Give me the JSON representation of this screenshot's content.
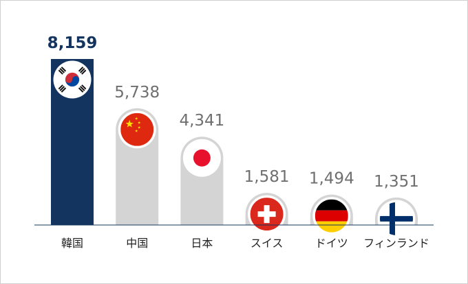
{
  "chart_data": {
    "type": "bar",
    "categories": [
      "韓国",
      "中国",
      "日本",
      "スイス",
      "ドイツ",
      "フィンランド"
    ],
    "values": [
      8159,
      5738,
      4341,
      1581,
      1494,
      1351
    ],
    "value_labels": [
      "8,159",
      "5,738",
      "4,341",
      "1,581",
      "1,494",
      "1,351"
    ],
    "flags": [
      "south-korea-flag-icon",
      "china-flag-icon",
      "japan-flag-icon",
      "switzerland-flag-icon",
      "germany-flag-icon",
      "finland-flag-icon"
    ],
    "highlight_index": 0,
    "ylim": [
      0,
      8159
    ],
    "grid": false,
    "legend": "none",
    "colors": {
      "highlight_bar": "#12345e",
      "bar": "#d4d4d4",
      "highlight_value": "#12345e",
      "value": "#6f6f6f",
      "category": "#222222",
      "axis": "#12345e"
    }
  }
}
